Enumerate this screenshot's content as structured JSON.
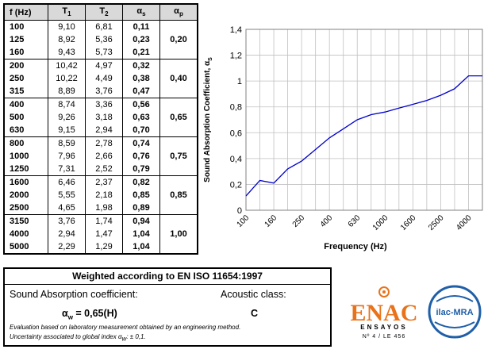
{
  "table": {
    "headers": {
      "f": "f (Hz)",
      "t1_base": "T",
      "t1_sub": "1",
      "t2_base": "T",
      "t2_sub": "2",
      "as_base": "α",
      "as_sub": "s",
      "ap_base": "α",
      "ap_sub": "p"
    },
    "rows": [
      {
        "f": "100",
        "t1": "9,10",
        "t2": "6,81",
        "as": "0,11"
      },
      {
        "f": "125",
        "t1": "8,92",
        "t2": "5,36",
        "as": "0,23"
      },
      {
        "f": "160",
        "t1": "9,43",
        "t2": "5,73",
        "as": "0,21"
      },
      {
        "f": "200",
        "t1": "10,42",
        "t2": "4,97",
        "as": "0,32"
      },
      {
        "f": "250",
        "t1": "10,22",
        "t2": "4,49",
        "as": "0,38"
      },
      {
        "f": "315",
        "t1": "8,89",
        "t2": "3,76",
        "as": "0,47"
      },
      {
        "f": "400",
        "t1": "8,74",
        "t2": "3,36",
        "as": "0,56"
      },
      {
        "f": "500",
        "t1": "9,26",
        "t2": "3,18",
        "as": "0,63"
      },
      {
        "f": "630",
        "t1": "9,15",
        "t2": "2,94",
        "as": "0,70"
      },
      {
        "f": "800",
        "t1": "8,59",
        "t2": "2,78",
        "as": "0,74"
      },
      {
        "f": "1000",
        "t1": "7,96",
        "t2": "2,66",
        "as": "0,76"
      },
      {
        "f": "1250",
        "t1": "7,31",
        "t2": "2,52",
        "as": "0,79"
      },
      {
        "f": "1600",
        "t1": "6,46",
        "t2": "2,37",
        "as": "0,82"
      },
      {
        "f": "2000",
        "t1": "5,55",
        "t2": "2,18",
        "as": "0,85"
      },
      {
        "f": "2500",
        "t1": "4,65",
        "t2": "1,98",
        "as": "0,89"
      },
      {
        "f": "3150",
        "t1": "3,76",
        "t2": "1,74",
        "as": "0,94"
      },
      {
        "f": "4000",
        "t1": "2,94",
        "t2": "1,47",
        "as": "1,04"
      },
      {
        "f": "5000",
        "t1": "2,29",
        "t2": "1,29",
        "as": "1,04"
      }
    ],
    "alpha_p": [
      "0,20",
      "0,40",
      "0,65",
      "0,75",
      "0,85",
      "1,00"
    ]
  },
  "chart_data": {
    "type": "line",
    "x": [
      "100",
      "125",
      "160",
      "200",
      "250",
      "315",
      "400",
      "500",
      "630",
      "800",
      "1000",
      "1250",
      "1600",
      "2000",
      "2500",
      "3150",
      "4000",
      "5000"
    ],
    "series": [
      {
        "values": [
          0.11,
          0.23,
          0.21,
          0.32,
          0.38,
          0.47,
          0.56,
          0.63,
          0.7,
          0.74,
          0.76,
          0.79,
          0.82,
          0.85,
          0.89,
          0.94,
          1.04,
          1.04
        ]
      }
    ],
    "x_tick_labels": [
      "100",
      "160",
      "250",
      "400",
      "630",
      "1000",
      "1600",
      "2500",
      "4000"
    ],
    "y_tick_labels": [
      "0",
      "0,2",
      "0,4",
      "0,6",
      "0,8",
      "1",
      "1,2",
      "1,4"
    ],
    "ylim": [
      0,
      1.4
    ],
    "xlabel": "Frequency (Hz)",
    "ylabel_main": "Sound Absorption Coefficient, α",
    "ylabel_sub": "S",
    "grid": true,
    "line_color": "#0000cc"
  },
  "weighted": {
    "title": "Weighted according to EN ISO 11654:1997",
    "sac_label": "Sound Absorption coefficient:",
    "ac_label": "Acoustic class:",
    "aw_symbol": "α",
    "aw_sub": "w",
    "aw_value": " = 0,65(H)",
    "ac_value": "C",
    "note1": "Evaluation based on laboratory measurement obtained by an engineering method.",
    "note2_prefix": "Uncertainty associated to global index α",
    "note2_sub": "w",
    "note2_suffix": ": ± 0,1."
  },
  "logos": {
    "enac_text": "ENAC",
    "enac_sub": "ENSAYOS",
    "enac_no": "Nº 4 / LE 456",
    "ilac_text": "ilac-MRA",
    "enac_color": "#e8731a",
    "ilac_color": "#1f5fa8"
  }
}
